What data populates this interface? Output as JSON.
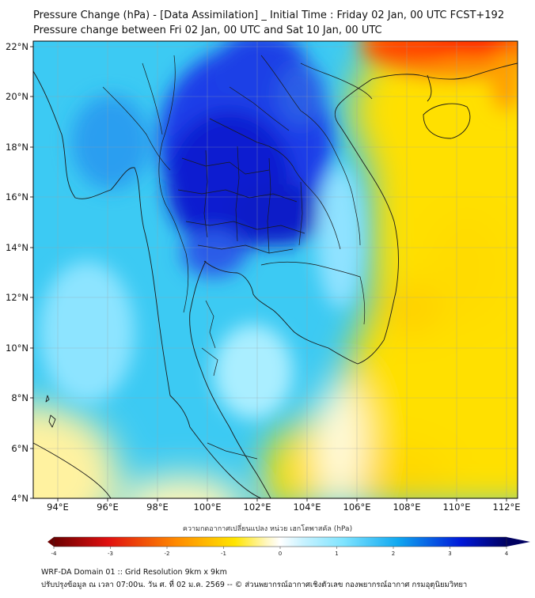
{
  "header": {
    "title_line1": "Pressure Change (hPa) - [Data Assimilation] _ Initial Time : Friday 02 Jan, 00 UTC FCST+192",
    "title_line2": "Pressure change between Fri 02 Jan, 00 UTC and Sat 10 Jan, 00 UTC"
  },
  "map": {
    "variable": "Pressure change",
    "units": "hPa",
    "lon_range": [
      93,
      112.5
    ],
    "lat_range": [
      4,
      22.2
    ],
    "lon_ticks": [
      "94°E",
      "96°E",
      "98°E",
      "100°E",
      "102°E",
      "104°E",
      "106°E",
      "108°E",
      "110°E",
      "112°E"
    ],
    "lat_ticks": [
      "22°N",
      "20°N",
      "18°N",
      "16°N",
      "14°N",
      "12°N",
      "10°N",
      "8°N",
      "6°N",
      "4°N"
    ],
    "gridlines": true
  },
  "colorbar": {
    "label": "ความกดอากาศเปลี่ยนแปลง หน่วย เฮกโตพาสคัล (hPa)",
    "range": [
      -4,
      4
    ],
    "ticks": [
      "-4",
      "-3",
      "-2",
      "-1",
      "0",
      "1",
      "2",
      "3",
      "4"
    ],
    "extend": "both",
    "colors": {
      "neg_extreme": "#6b0000",
      "neg_strong": "#e01010",
      "neg_mid": "#ff8a00",
      "neg_weak": "#ffe500",
      "zero": "#ffffff",
      "pos_weak": "#7fe4ff",
      "pos_mid": "#10a8f0",
      "pos_strong": "#0018d8",
      "pos_extreme": "#000060"
    }
  },
  "footer": {
    "line1": "WRF-DA Domain 01 :: Grid Resolution 9km x 9km",
    "line2": "ปรับปรุงข้อมูล ณ เวลา 07:00น. วัน ศ. ที่ 02 ม.ค. 2569 -- © ส่วนพยากรณ์อากาศเชิงตัวเลข กองพยากรณ์อากาศ กรมอุตุนิยมวิทยา"
  }
}
